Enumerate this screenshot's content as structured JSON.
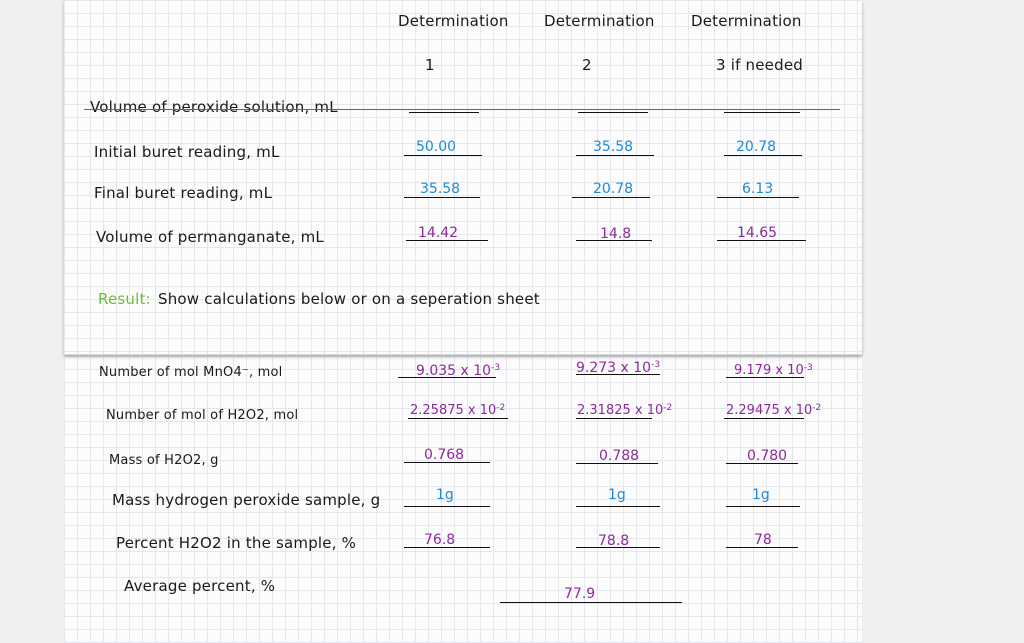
{
  "headers": {
    "det1": "Determination",
    "det1_num": "1",
    "det2": "Determination",
    "det2_num": "2",
    "det3": "Determination",
    "det3_num": "3 if needed"
  },
  "rows": {
    "peroxide_volume": {
      "label": "Volume of peroxide solution, mL",
      "values": [
        "",
        "",
        ""
      ]
    },
    "initial_reading": {
      "label": "Initial buret reading, mL",
      "values": [
        "50.00",
        "35.58",
        "20.78"
      ]
    },
    "final_reading": {
      "label": "Final buret reading, mL",
      "values": [
        "35.58",
        "20.78",
        "6.13"
      ]
    },
    "permanganate_volume": {
      "label": "Volume of permanganate, mL",
      "values": [
        "14.42",
        "14.8",
        "14.65"
      ]
    },
    "mol_mno4": {
      "label": "Number of mol MnO4⁻, mol",
      "values": [
        "9.035 x 10",
        "9.273 x 10",
        "9.179 x 10"
      ],
      "exponents": [
        "-3",
        "-3",
        "-3"
      ]
    },
    "mol_h2o2": {
      "label": "Number of mol of H2O2, mol",
      "values": [
        "2.25875 x 10",
        "2.31825 x 10",
        "2.29475 x 10"
      ],
      "exponents": [
        "-2",
        "-2",
        "-2"
      ]
    },
    "mass_h2o2": {
      "label": "Mass of H2O2, g",
      "values": [
        "0.768",
        "0.788",
        "0.780"
      ]
    },
    "mass_sample": {
      "label": "Mass hydrogen peroxide sample, g",
      "values": [
        "1g",
        "1g",
        "1g"
      ]
    },
    "percent_h2o2": {
      "label": "Percent H2O2 in the sample, %",
      "values": [
        "76.8",
        "78.8",
        "78"
      ]
    },
    "average_percent": {
      "label": "Average percent, %",
      "value": "77.9"
    }
  },
  "result": {
    "label": "Result:",
    "text": "Show calculations below or on a seperation sheet"
  },
  "colors": {
    "blue_ink": "#1d8ad8",
    "purple_ink": "#8e2a9c",
    "strike_red": "#e0312b",
    "result_green": "#6cbf3a",
    "grid": "#e4e7ed"
  }
}
